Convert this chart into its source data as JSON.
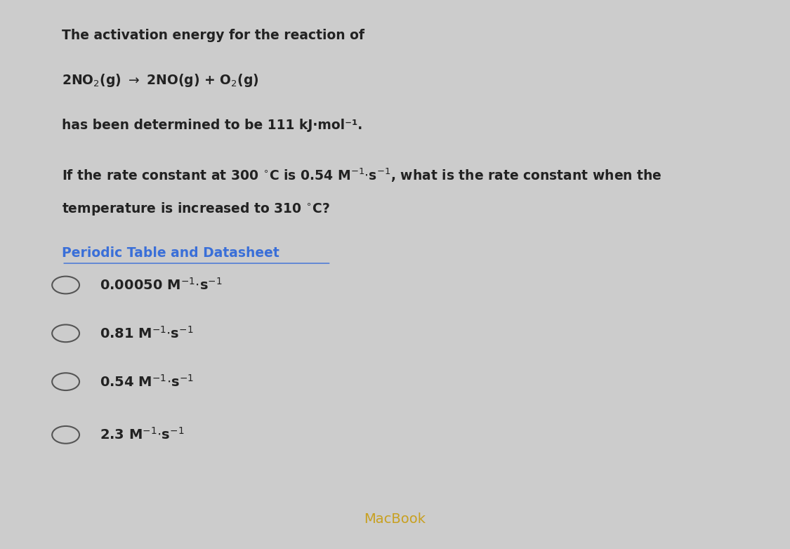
{
  "bg_color_top": "#d0d0d0",
  "bg_color_bottom": "#1a1a1a",
  "text_color": "#222222",
  "link_color": "#3a6fd8",
  "macbook_color": "#c0a020",
  "line1": "The activation energy for the reaction of",
  "line2_parts": [
    "2NO",
    "2",
    "(g)",
    "→",
    "2NO(g) + O",
    "2",
    "(g)"
  ],
  "line3": "has been determined to be 111 kJ·mol⁻¹.",
  "line4a": "If the rate constant at 300 °C is 0.54 M⁻¹·s⁻¹, what is the rate constant when the",
  "line4b": "temperature is increased to 310 °C?",
  "link_text": "Periodic Table and Datasheet",
  "options": [
    "0.00050 M⁻¹·s⁻¹",
    "0.81 M⁻¹·s⁻¹",
    "0.54 M⁻¹·s⁻¹",
    "2.3 M⁻¹·s⁻¹"
  ],
  "macbook_text": "MacBook"
}
